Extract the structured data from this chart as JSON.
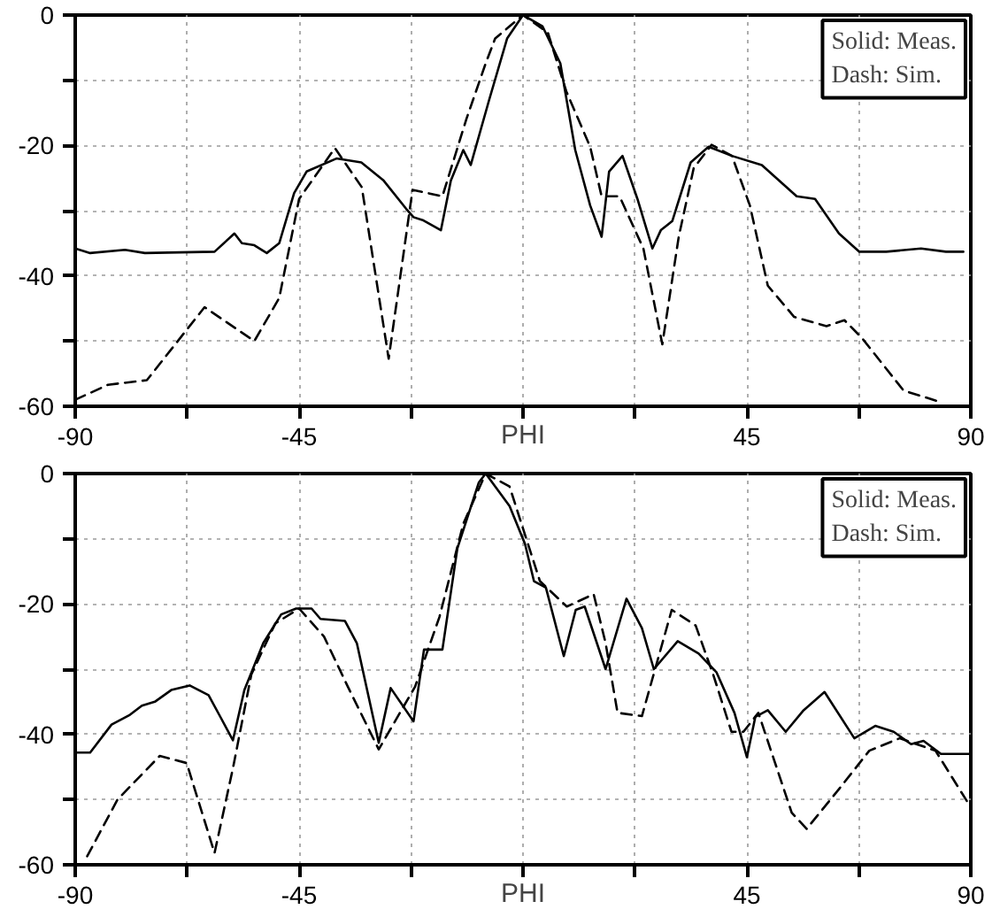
{
  "chart_data": [
    {
      "type": "line",
      "xlabel": "PHI",
      "xlim": [
        -90,
        90
      ],
      "ylim": [
        -60,
        0
      ],
      "xticks": [
        -90,
        {
          "value": -67.5,
          "label": null
        },
        -45,
        {
          "value": -22.5,
          "label": null
        },
        {
          "value": 0,
          "label": null
        },
        {
          "value": 22.5,
          "label": null
        },
        45,
        {
          "value": 67.5,
          "label": null
        },
        90
      ],
      "yticks": [
        -60,
        {
          "value": -50,
          "label": null
        },
        -40,
        {
          "value": -30,
          "label": null
        },
        -20,
        {
          "value": -10,
          "label": null
        },
        0
      ],
      "grid": true,
      "marker": "none",
      "annotations": [
        "Solid: Meas.",
        "Dash: Sim."
      ],
      "series": [
        {
          "color": "#000000",
          "line_style": "solid",
          "x": [
            -90,
            -87,
            -80,
            -76,
            -62,
            -58,
            -56.5,
            -54,
            -51.5,
            -49,
            -46,
            -43.5,
            -37.5,
            -32.5,
            -28,
            -23.5,
            -22,
            -20,
            -16.5,
            -14.5,
            -12,
            -10.5,
            -6.8,
            -3.2,
            0,
            3.9,
            7.5,
            10.5,
            13.5,
            15.8,
            17.3,
            20,
            23,
            26,
            27.7,
            30,
            33.7,
            37.3,
            42,
            48,
            55,
            58.7,
            63.5,
            67.6,
            73,
            80,
            85,
            88.5
          ],
          "values": [
            -35.8,
            -36.5,
            -36,
            -36.5,
            -36.3,
            -33.5,
            -35,
            -35.3,
            -36.5,
            -35,
            -27.3,
            -24,
            -22,
            -22.6,
            -25.4,
            -29.7,
            -31,
            -31.5,
            -33,
            -25.4,
            -20.7,
            -23,
            -13,
            -3.6,
            0,
            -1.7,
            -7.4,
            -20.7,
            -29.2,
            -34,
            -24,
            -21.6,
            -28.2,
            -35.8,
            -33,
            -31.6,
            -22.6,
            -20.2,
            -21.6,
            -23,
            -27.8,
            -28.2,
            -33.5,
            -36.3,
            -36.3,
            -35.8,
            -36.3,
            -36.3
          ]
        },
        {
          "color": "#000000",
          "line_style": "dashed",
          "x": [
            -90,
            -83.4,
            -75.6,
            -64,
            -54,
            -49,
            -45,
            -37.8,
            -32.4,
            -27,
            -22.2,
            -16.2,
            -11.4,
            -7.5,
            -5.6,
            0,
            5,
            8.7,
            13.5,
            15.8,
            19.4,
            24.2,
            28,
            31.3,
            34.3,
            37.9,
            42,
            45.6,
            49.2,
            54.5,
            61,
            64.6,
            68.2,
            76.5,
            83.7
          ],
          "values": [
            -59,
            -56.7,
            -56,
            -44.8,
            -50,
            -43.4,
            -28.2,
            -20.4,
            -26.4,
            -52.7,
            -26.8,
            -27.8,
            -16,
            -7.4,
            -3.6,
            0,
            -2.7,
            -11.7,
            -20.2,
            -27.8,
            -27.8,
            -35.8,
            -50.5,
            -34,
            -23.5,
            -19.9,
            -21.6,
            -29.2,
            -41.5,
            -46.3,
            -47.7,
            -46.8,
            -49.6,
            -57.6,
            -59.3
          ]
        }
      ]
    },
    {
      "type": "line",
      "xlabel": "PHI",
      "xlim": [
        -90,
        90
      ],
      "ylim": [
        -60,
        0
      ],
      "xticks": [
        -90,
        {
          "value": -67.5,
          "label": null
        },
        -45,
        {
          "value": -22.5,
          "label": null
        },
        {
          "value": 0,
          "label": null
        },
        {
          "value": 22.5,
          "label": null
        },
        45,
        {
          "value": 67.5,
          "label": null
        },
        90
      ],
      "yticks": [
        -60,
        {
          "value": -50,
          "label": null
        },
        -40,
        {
          "value": -30,
          "label": null
        },
        -20,
        {
          "value": -10,
          "label": null
        },
        0
      ],
      "grid": true,
      "marker": "none",
      "annotations": [
        "Solid: Meas.",
        "Dash: Sim."
      ],
      "series": [
        {
          "color": "#000000",
          "line_style": "solid",
          "x": [
            -90,
            -87,
            -82.7,
            -79,
            -76.6,
            -74,
            -70.7,
            -67,
            -63.2,
            -60.7,
            -58.3,
            -56,
            -52.2,
            -48.6,
            -45.6,
            -42.5,
            -40.7,
            -35.8,
            -33.4,
            -29,
            -26.6,
            -22,
            -19.9,
            -16.2,
            -13.2,
            -8.9,
            -7.5,
            -2.7,
            0.4,
            2.2,
            4.6,
            8.2,
            10.6,
            12.4,
            16.6,
            20.8,
            23.9,
            26.3,
            31.1,
            35.3,
            38.9,
            42.5,
            45,
            46.7,
            49.2,
            52.8,
            56.4,
            60.6,
            66.6,
            70.8,
            74.5,
            78,
            80.5,
            84,
            90
          ],
          "values": [
            -42.8,
            -42.8,
            -38.5,
            -37,
            -35.6,
            -35,
            -33.2,
            -32.5,
            -34,
            -37.5,
            -40.9,
            -33.2,
            -26,
            -21.6,
            -20.7,
            -20.7,
            -22.3,
            -22.6,
            -26,
            -41.3,
            -32.9,
            -38,
            -27,
            -27,
            -11.5,
            -1.4,
            0,
            -5,
            -10.8,
            -16.5,
            -17.5,
            -28,
            -20.9,
            -20.4,
            -30,
            -19.2,
            -23.7,
            -30,
            -25.7,
            -27.6,
            -30.5,
            -36.7,
            -43.5,
            -37.3,
            -36.3,
            -39.6,
            -36.3,
            -33.5,
            -40.6,
            -38.7,
            -39.6,
            -41.5,
            -41,
            -43,
            -43
          ]
        },
        {
          "color": "#000000",
          "line_style": "dashed",
          "x": [
            -87.6,
            -81.5,
            -73,
            -67.6,
            -62,
            -58.3,
            -54.6,
            -49.8,
            -45,
            -40,
            -35.2,
            -29,
            -21.7,
            -16.8,
            -12,
            -7.5,
            -2.7,
            1,
            3.4,
            8.8,
            14.2,
            16.6,
            19,
            23.9,
            29.9,
            34.7,
            38.3,
            41.9,
            44.3,
            47.3,
            54,
            57,
            63.6,
            69.6,
            75.7,
            82.9,
            90
          ],
          "values": [
            -58.7,
            -50,
            -43.3,
            -44.4,
            -58.2,
            -45.2,
            -30.8,
            -23,
            -20.7,
            -25,
            -32.7,
            -42.3,
            -32.7,
            -22,
            -7.7,
            0,
            -2,
            -10.8,
            -16.5,
            -20.4,
            -18.5,
            -26,
            -36.7,
            -37.2,
            -20.9,
            -23.3,
            -31,
            -39.6,
            -39.6,
            -36.7,
            -52,
            -54.5,
            -48.3,
            -42.5,
            -40.6,
            -42.5,
            -51.2
          ]
        }
      ]
    }
  ]
}
